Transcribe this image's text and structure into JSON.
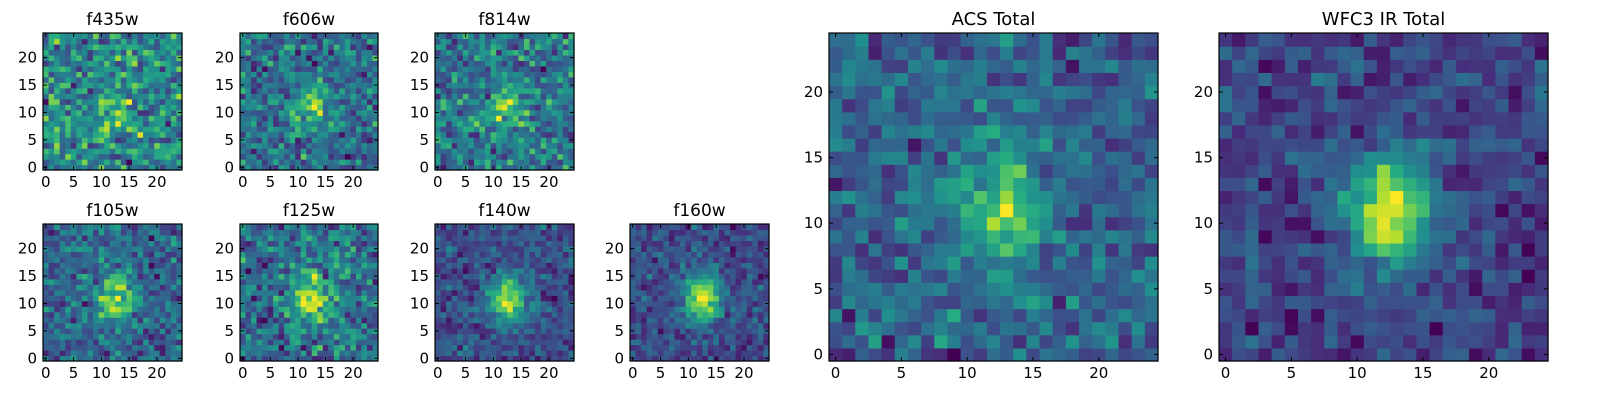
{
  "chart_data": [
    {
      "type": "heatmap",
      "title": "f435w",
      "seed": 11,
      "blob": 0.15,
      "noise": 0.75,
      "xticks": [
        0,
        5,
        10,
        15,
        20
      ],
      "yticks": [
        0,
        5,
        10,
        15,
        20
      ],
      "xlim": [
        0,
        24
      ],
      "ylim": [
        0,
        24
      ],
      "colormap": "viridis"
    },
    {
      "type": "heatmap",
      "title": "f606w",
      "seed": 23,
      "blob": 0.3,
      "noise": 0.7,
      "xticks": [
        0,
        5,
        10,
        15,
        20
      ],
      "yticks": [
        0,
        5,
        10,
        15,
        20
      ],
      "xlim": [
        0,
        24
      ],
      "ylim": [
        0,
        24
      ],
      "colormap": "viridis"
    },
    {
      "type": "heatmap",
      "title": "f814w",
      "seed": 37,
      "blob": 0.25,
      "noise": 0.7,
      "xticks": [
        0,
        5,
        10,
        15,
        20
      ],
      "yticks": [
        0,
        5,
        10,
        15,
        20
      ],
      "xlim": [
        0,
        24
      ],
      "ylim": [
        0,
        24
      ],
      "colormap": "viridis"
    },
    {
      "type": "heatmap",
      "title": "f105w",
      "seed": 41,
      "blob": 0.4,
      "noise": 0.55,
      "xticks": [
        0,
        5,
        10,
        15,
        20
      ],
      "yticks": [
        0,
        5,
        10,
        15,
        20
      ],
      "xlim": [
        0,
        24
      ],
      "ylim": [
        0,
        24
      ],
      "colormap": "viridis"
    },
    {
      "type": "heatmap",
      "title": "f125w",
      "seed": 53,
      "blob": 0.4,
      "noise": 0.6,
      "xticks": [
        0,
        5,
        10,
        15,
        20
      ],
      "yticks": [
        0,
        5,
        10,
        15,
        20
      ],
      "xlim": [
        0,
        24
      ],
      "ylim": [
        0,
        24
      ],
      "colormap": "viridis"
    },
    {
      "type": "heatmap",
      "title": "f140w",
      "seed": 67,
      "blob": 0.55,
      "noise": 0.45,
      "xticks": [
        0,
        5,
        10,
        15,
        20
      ],
      "yticks": [
        0,
        5,
        10,
        15,
        20
      ],
      "xlim": [
        0,
        24
      ],
      "ylim": [
        0,
        24
      ],
      "colormap": "viridis"
    },
    {
      "type": "heatmap",
      "title": "f160w",
      "seed": 79,
      "blob": 0.6,
      "noise": 0.45,
      "xticks": [
        0,
        5,
        10,
        15,
        20
      ],
      "yticks": [
        0,
        5,
        10,
        15,
        20
      ],
      "xlim": [
        0,
        24
      ],
      "ylim": [
        0,
        24
      ],
      "colormap": "viridis"
    },
    {
      "type": "heatmap",
      "title": "ACS Total",
      "seed": 97,
      "blob": 0.4,
      "noise": 0.55,
      "xticks": [
        0,
        5,
        10,
        15,
        20
      ],
      "yticks": [
        0,
        5,
        10,
        15,
        20
      ],
      "xlim": [
        0,
        24
      ],
      "ylim": [
        0,
        24
      ],
      "colormap": "viridis"
    },
    {
      "type": "heatmap",
      "title": "WFC3 IR Total",
      "seed": 131,
      "blob": 0.6,
      "noise": 0.4,
      "xticks": [
        0,
        5,
        10,
        15,
        20
      ],
      "yticks": [
        0,
        5,
        10,
        15,
        20
      ],
      "xlim": [
        0,
        24
      ],
      "ylim": [
        0,
        24
      ],
      "colormap": "viridis"
    }
  ]
}
